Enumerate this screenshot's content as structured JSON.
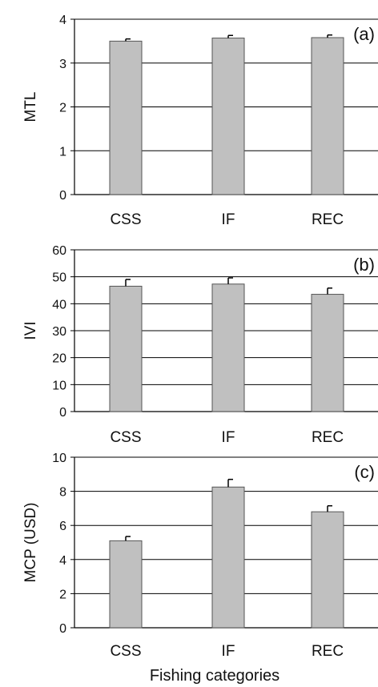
{
  "figure": {
    "xlabel": "Fishing categories"
  },
  "colors": {
    "bar_fill": "#c0c0c0",
    "bar_stroke": "#555555",
    "grid": "#000000",
    "text": "#111111"
  },
  "chart_data": [
    {
      "type": "bar",
      "panel_label": "(a)",
      "ylabel": "MTL",
      "categories": [
        "CSS",
        "IF",
        "REC"
      ],
      "values": [
        3.5,
        3.57,
        3.58
      ],
      "errors": [
        0.05,
        0.06,
        0.06
      ],
      "ylim": [
        0,
        4
      ],
      "yticks": [
        0,
        1,
        2,
        3,
        4
      ],
      "grid": true,
      "ytick_labels": [
        "0",
        "1",
        "2",
        "3",
        "4"
      ]
    },
    {
      "type": "bar",
      "panel_label": "(b)",
      "ylabel": "IVI",
      "categories": [
        "CSS",
        "IF",
        "REC"
      ],
      "values": [
        46.5,
        47.3,
        43.5
      ],
      "errors": [
        2.5,
        2.3,
        2.3
      ],
      "ylim": [
        0,
        60
      ],
      "yticks": [
        0,
        10,
        20,
        30,
        40,
        50,
        60
      ],
      "grid": true,
      "ytick_labels": [
        "0",
        "10",
        "20",
        "30",
        "40",
        "50",
        "60"
      ]
    },
    {
      "type": "bar",
      "panel_label": "(c)",
      "ylabel": "MCP (USD)",
      "categories": [
        "CSS",
        "IF",
        "REC"
      ],
      "values": [
        5.1,
        8.25,
        6.8
      ],
      "errors": [
        0.25,
        0.45,
        0.35
      ],
      "ylim": [
        0,
        10
      ],
      "yticks": [
        0,
        2,
        4,
        6,
        8,
        10
      ],
      "grid": true,
      "ytick_labels": [
        "0",
        "2",
        "4",
        "6",
        "8",
        "10"
      ]
    }
  ]
}
